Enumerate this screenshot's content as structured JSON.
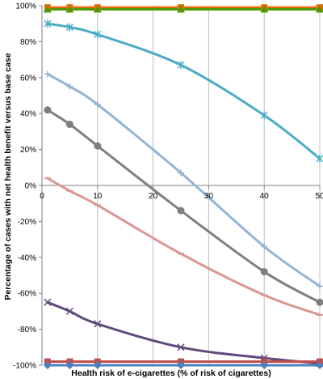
{
  "chart_data": {
    "type": "line",
    "title": "",
    "xlabel": "Health risk of e-cigarettes (% of risk of cigarettes)",
    "ylabel": "Percentage of cases with net health benefit versus base case",
    "xlim": [
      0,
      50
    ],
    "ylim": [
      -100,
      100
    ],
    "x_ticks": [
      0,
      10,
      20,
      30,
      40,
      50
    ],
    "x_tick_labels": [
      "0",
      "10",
      "20",
      "30",
      "40",
      "50"
    ],
    "y_ticks": [
      -100,
      -80,
      -60,
      -40,
      -20,
      0,
      20,
      40,
      60,
      80,
      100
    ],
    "y_tick_labels": [
      "-100%",
      "-80%",
      "-60%",
      "-40%",
      "-20%",
      "0%",
      "20%",
      "40%",
      "60%",
      "80%",
      "100%"
    ],
    "grid": "vertical",
    "legend": "none",
    "series": [
      {
        "color": "#e46c0a",
        "marker": "square",
        "x": [
          1,
          5,
          10,
          25,
          40,
          50
        ],
        "y": [
          99,
          99,
          99,
          99,
          99,
          99
        ]
      },
      {
        "color": "#4e9a06",
        "marker": "triangle",
        "x": [
          1,
          5,
          10,
          25,
          40,
          50
        ],
        "y": [
          98,
          98,
          98,
          98,
          98,
          98
        ]
      },
      {
        "color": "#4bacc6",
        "marker": "star",
        "x": [
          1,
          5,
          10,
          25,
          40,
          50
        ],
        "y": [
          90,
          88,
          84,
          67,
          39,
          15
        ]
      },
      {
        "color": "#95b3d7",
        "marker": "plus",
        "x": [
          1,
          5,
          10,
          25,
          40,
          50
        ],
        "y": [
          62,
          55,
          45,
          7,
          -34,
          -56
        ]
      },
      {
        "color": "#7f7f7f",
        "marker": "circle",
        "x": [
          1,
          5,
          10,
          25,
          40,
          50
        ],
        "y": [
          42,
          34,
          22,
          -14,
          -48,
          -65
        ]
      },
      {
        "color": "#d99694",
        "marker": "dash",
        "x": [
          1,
          5,
          10,
          25,
          40,
          50
        ],
        "y": [
          4,
          -3,
          -11,
          -38,
          -61,
          -72
        ]
      },
      {
        "color": "#604a7b",
        "marker": "x",
        "x": [
          1,
          5,
          10,
          25,
          40,
          50
        ],
        "y": [
          -65,
          -70,
          -77,
          -90,
          -96,
          -99
        ]
      },
      {
        "color": "#c0504d",
        "marker": "square",
        "x": [
          1,
          5,
          10,
          25,
          40,
          50
        ],
        "y": [
          -98,
          -98,
          -98,
          -98,
          -98,
          -98
        ]
      },
      {
        "color": "#4f81bd",
        "marker": "diamond",
        "x": [
          1,
          5,
          10,
          25,
          40,
          50
        ],
        "y": [
          -100,
          -100,
          -100,
          -100,
          -100,
          -100
        ]
      }
    ]
  }
}
